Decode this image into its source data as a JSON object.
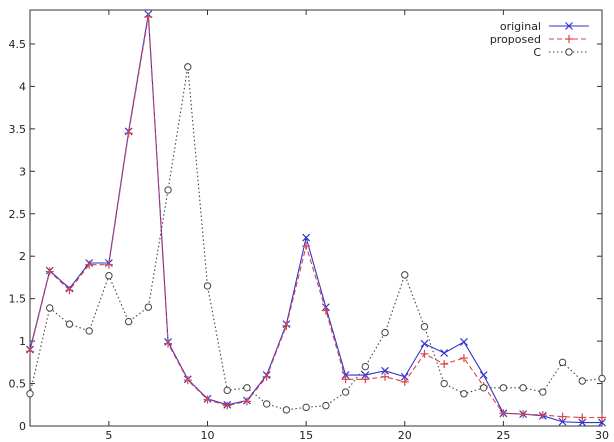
{
  "chart_data": {
    "type": "line",
    "title": "",
    "xlabel": "",
    "ylabel": "",
    "xlim": [
      1,
      30
    ],
    "ylim": [
      0,
      4.9
    ],
    "x_ticks": [
      5,
      10,
      15,
      20,
      25,
      30
    ],
    "y_ticks": [
      0,
      0.5,
      1,
      1.5,
      2,
      2.5,
      3,
      3.5,
      4,
      4.5
    ],
    "grid": false,
    "legend_position": "top-right",
    "x": [
      1,
      2,
      3,
      4,
      5,
      6,
      7,
      8,
      9,
      10,
      11,
      12,
      13,
      14,
      15,
      16,
      17,
      18,
      19,
      20,
      21,
      22,
      23,
      24,
      25,
      26,
      27,
      28,
      29,
      30
    ],
    "series": [
      {
        "name": "original",
        "color": "#3333cc",
        "line_style": "solid",
        "marker": "x",
        "values": [
          0.9,
          1.83,
          1.62,
          1.92,
          1.92,
          3.47,
          4.85,
          0.99,
          0.55,
          0.32,
          0.25,
          0.3,
          0.6,
          1.2,
          2.22,
          1.4,
          0.6,
          0.6,
          0.65,
          0.58,
          0.97,
          0.86,
          0.99,
          0.6,
          0.15,
          0.14,
          0.12,
          0.05,
          0.04,
          0.04
        ]
      },
      {
        "name": "proposed",
        "color": "#dd4444",
        "line_style": "dashed",
        "marker": "+",
        "values": [
          0.88,
          1.82,
          1.6,
          1.9,
          1.9,
          3.45,
          4.82,
          0.97,
          0.54,
          0.31,
          0.24,
          0.29,
          0.58,
          1.18,
          2.12,
          1.36,
          0.55,
          0.55,
          0.58,
          0.52,
          0.85,
          0.73,
          0.8,
          0.47,
          0.15,
          0.14,
          0.13,
          0.11,
          0.1,
          0.1
        ]
      },
      {
        "name": "C",
        "color": "#444444",
        "line_style": "dotted",
        "marker": "circle",
        "values": [
          0.38,
          1.39,
          1.2,
          1.12,
          1.77,
          1.23,
          1.4,
          2.78,
          4.23,
          1.65,
          0.42,
          0.45,
          0.26,
          0.19,
          0.22,
          0.24,
          0.4,
          0.7,
          1.1,
          1.78,
          1.17,
          0.5,
          0.38,
          0.45,
          0.45,
          0.45,
          0.4,
          0.75,
          0.53,
          0.56
        ]
      }
    ]
  }
}
